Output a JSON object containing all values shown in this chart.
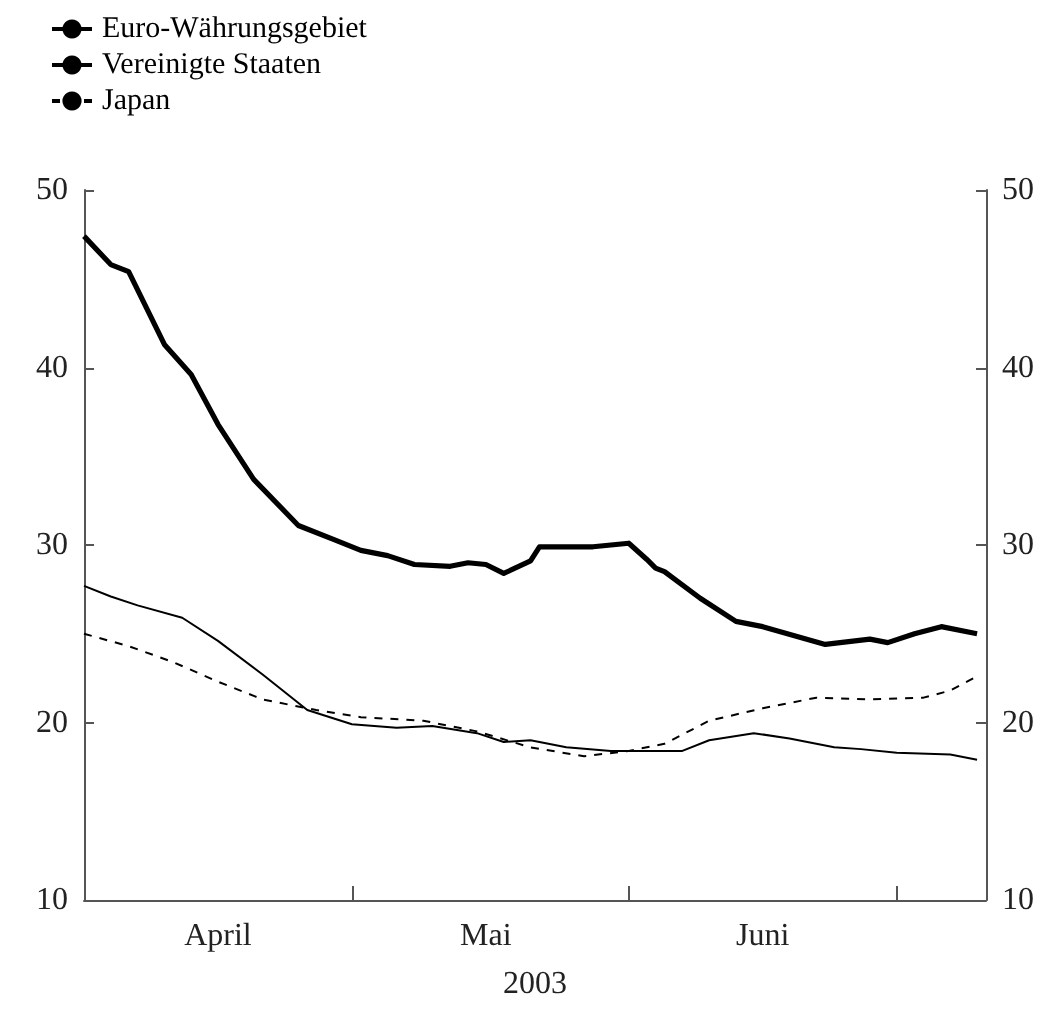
{
  "chart_data": {
    "type": "line",
    "xlabel": "2003",
    "legend": "top left",
    "grid": false,
    "marker": "none",
    "xlim": [
      "2003-04-01",
      "2003-07-11"
    ],
    "xticks": [
      {
        "value": "2003-04-01",
        "label": null
      },
      {
        "value": "2003-04-16",
        "label": "April"
      },
      {
        "value": "2003-05-01",
        "label": null
      },
      {
        "value": "2003-05-16",
        "label": "Mai"
      },
      {
        "value": "2003-06-01",
        "label": null
      },
      {
        "value": "2003-06-16",
        "label": "Juni"
      },
      {
        "value": "2003-07-01",
        "label": null
      }
    ],
    "ylim": [
      10,
      50
    ],
    "yticks": [
      10,
      20,
      30,
      40,
      50
    ],
    "y2lim": [
      10,
      50
    ],
    "y2ticks": [
      10,
      20,
      30,
      40,
      50
    ],
    "series": [
      {
        "name": "Euro-Währungsgebiet",
        "color": "#000000",
        "line_style": "solid",
        "x": [
          "2003-04-01",
          "2003-04-04",
          "2003-04-06",
          "2003-04-10",
          "2003-04-13",
          "2003-04-16",
          "2003-04-20",
          "2003-04-25",
          "2003-04-29",
          "2003-05-02",
          "2003-05-05",
          "2003-05-08",
          "2003-05-12",
          "2003-05-14",
          "2003-05-16",
          "2003-05-18",
          "2003-05-21",
          "2003-05-22",
          "2003-05-28",
          "2003-06-01",
          "2003-06-03",
          "2003-06-04",
          "2003-06-05",
          "2003-06-09",
          "2003-06-13",
          "2003-06-16",
          "2003-06-23",
          "2003-06-28",
          "2003-06-30",
          "2003-07-03",
          "2003-07-06",
          "2003-07-10"
        ],
        "values": [
          47.4,
          45.8,
          45.4,
          41.3,
          39.6,
          36.8,
          33.7,
          31.1,
          30.3,
          29.7,
          29.4,
          28.9,
          28.8,
          29.0,
          28.9,
          28.4,
          29.1,
          29.9,
          29.9,
          30.1,
          29.2,
          28.7,
          28.5,
          27.0,
          25.7,
          25.4,
          24.4,
          24.7,
          24.5,
          25.0,
          25.4,
          25.0
        ]
      },
      {
        "name": "Vereinigte Staaten",
        "color": "#000000",
        "line_style": "solid",
        "x": [
          "2003-04-01",
          "2003-04-04",
          "2003-04-07",
          "2003-04-12",
          "2003-04-16",
          "2003-04-21",
          "2003-04-26",
          "2003-05-01",
          "2003-05-06",
          "2003-05-10",
          "2003-05-15",
          "2003-05-18",
          "2003-05-21",
          "2003-05-25",
          "2003-05-30",
          "2003-06-03",
          "2003-06-07",
          "2003-06-10",
          "2003-06-15",
          "2003-06-19",
          "2003-06-24",
          "2003-06-27",
          "2003-07-01",
          "2003-07-07",
          "2003-07-10"
        ],
        "values": [
          27.7,
          27.1,
          26.6,
          25.9,
          24.6,
          22.7,
          20.7,
          19.9,
          19.7,
          19.8,
          19.4,
          18.9,
          19.0,
          18.6,
          18.4,
          18.4,
          18.4,
          19.0,
          19.4,
          19.1,
          18.6,
          18.5,
          18.3,
          18.2,
          17.9
        ]
      },
      {
        "name": "Japan",
        "color": "#000000",
        "line_style": "dashed",
        "x": [
          "2003-04-01",
          "2003-04-06",
          "2003-04-11",
          "2003-04-16",
          "2003-04-21",
          "2003-04-27",
          "2003-05-02",
          "2003-05-09",
          "2003-05-15",
          "2003-05-21",
          "2003-05-27",
          "2003-06-01",
          "2003-06-05",
          "2003-06-10",
          "2003-06-16",
          "2003-06-22",
          "2003-06-28",
          "2003-07-04",
          "2003-07-07",
          "2003-07-10"
        ],
        "values": [
          25.0,
          24.3,
          23.4,
          22.3,
          21.3,
          20.7,
          20.3,
          20.1,
          19.5,
          18.6,
          18.1,
          18.4,
          18.8,
          20.1,
          20.8,
          21.4,
          21.3,
          21.4,
          21.8,
          22.6
        ]
      }
    ]
  }
}
